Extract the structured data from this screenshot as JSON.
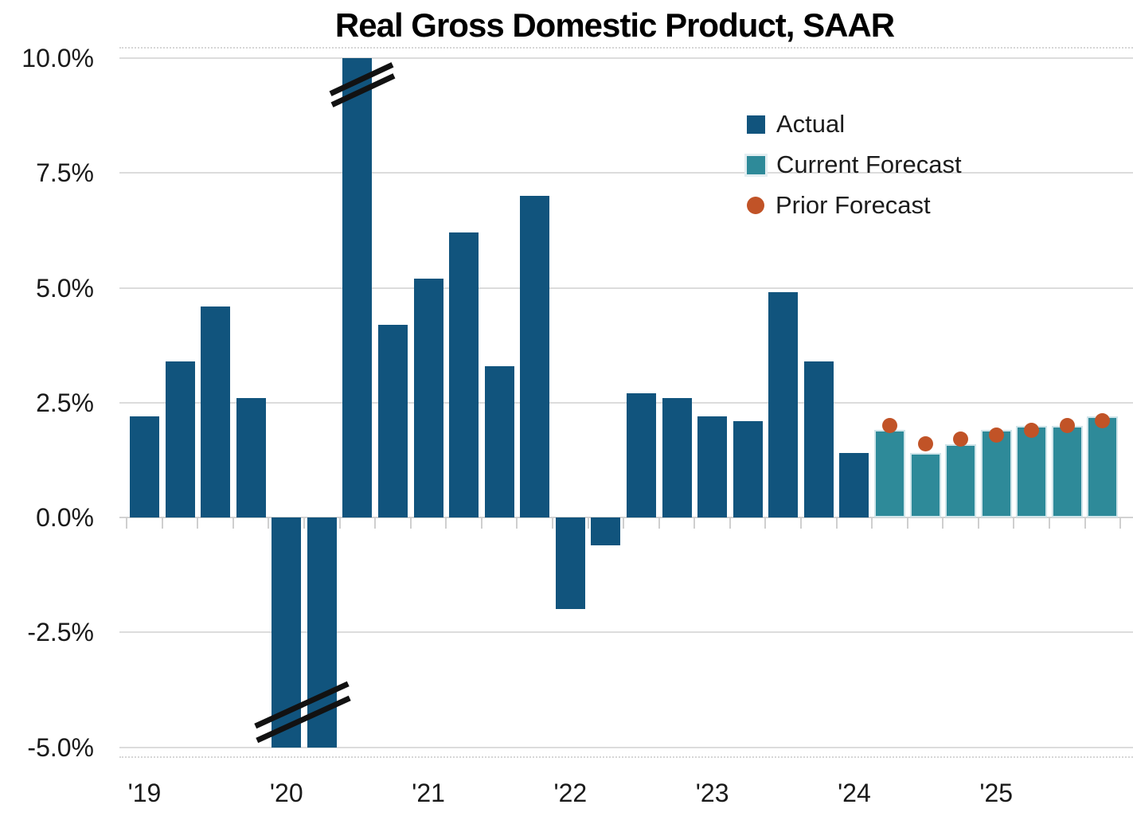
{
  "title": "Real Gross Domestic Product, SAAR",
  "legend": {
    "items": [
      {
        "label": "Actual",
        "swatch": "square",
        "color": "#11547D"
      },
      {
        "label": "Current Forecast",
        "swatch": "square-outlined",
        "color": "#2E8A99",
        "outline_color": "#CFE4E9"
      },
      {
        "label": "Prior Forecast",
        "swatch": "circle",
        "color": "#C15327"
      }
    ]
  },
  "y_axis": {
    "unit": "%",
    "tick_labels": [
      "10.0%",
      "7.5%",
      "5.0%",
      "2.5%",
      "0.0%",
      "-2.5%",
      "-5.0%"
    ],
    "tick_values": [
      10,
      7.5,
      5,
      2.5,
      0,
      -2.5,
      -5
    ]
  },
  "x_axis": {
    "year_labels": [
      "'19",
      "'20",
      "'21",
      "'22",
      "'23",
      "'24",
      "'25"
    ],
    "year_start_quarter_indices": [
      0,
      4,
      8,
      12,
      16,
      20,
      24
    ]
  },
  "chart_data": {
    "type": "bar",
    "title": "Real Gross Domestic Product, SAAR",
    "y_unit": "percent, seasonally adjusted annual rate",
    "ylim": [
      -5,
      10
    ],
    "grid": "horizontal",
    "legend_position": "upper right",
    "x": [
      "'19 Q1",
      "'19 Q2",
      "'19 Q3",
      "'19 Q4",
      "'20 Q1",
      "'20 Q2",
      "'20 Q3",
      "'20 Q4",
      "'21 Q1",
      "'21 Q2",
      "'21 Q3",
      "'21 Q4",
      "'22 Q1",
      "'22 Q2",
      "'22 Q3",
      "'22 Q4",
      "'23 Q1",
      "'23 Q2",
      "'23 Q3",
      "'23 Q4",
      "'24 Q1",
      "'24 Q2",
      "'24 Q3",
      "'24 Q4",
      "'25 Q1",
      "'25 Q2",
      "'25 Q3",
      "'25 Q4"
    ],
    "series": [
      {
        "name": "Actual",
        "style": "bar",
        "color": "#11547D",
        "values": [
          2.2,
          3.4,
          4.6,
          2.6,
          -5.0,
          -5.0,
          10.0,
          4.2,
          5.2,
          6.2,
          3.3,
          7.0,
          -2.0,
          -0.6,
          2.7,
          2.6,
          2.2,
          2.1,
          4.9,
          3.4,
          1.4,
          null,
          null,
          null,
          null,
          null,
          null,
          null
        ]
      },
      {
        "name": "Current Forecast",
        "style": "bar",
        "color": "#2E8A99",
        "edge_color": "#CFE4E9",
        "values": [
          null,
          null,
          null,
          null,
          null,
          null,
          null,
          null,
          null,
          null,
          null,
          null,
          null,
          null,
          null,
          null,
          null,
          null,
          null,
          null,
          null,
          1.9,
          1.4,
          1.6,
          1.9,
          2.0,
          2.0,
          2.2
        ]
      },
      {
        "name": "Prior Forecast",
        "style": "point",
        "color": "#C15327",
        "values": [
          null,
          null,
          null,
          null,
          null,
          null,
          null,
          null,
          null,
          null,
          null,
          null,
          null,
          null,
          null,
          null,
          null,
          null,
          null,
          null,
          null,
          2.0,
          1.6,
          1.7,
          1.8,
          1.9,
          2.0,
          2.1
        ]
      }
    ],
    "clipped_bars": [
      {
        "x": "'20 Q1",
        "shown_at": -5.0,
        "break_marks": "bottom"
      },
      {
        "x": "'20 Q2",
        "shown_at": -5.0,
        "break_marks": "bottom"
      },
      {
        "x": "'20 Q3",
        "shown_at": 10.0,
        "break_marks": "top"
      }
    ]
  }
}
